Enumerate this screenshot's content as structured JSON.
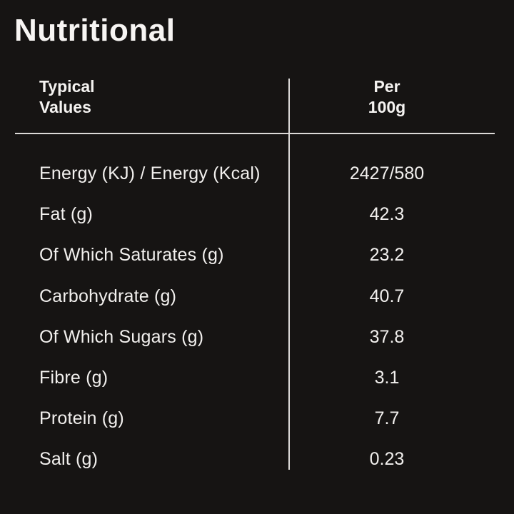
{
  "title": "Nutritional",
  "table": {
    "header": {
      "col1_line1": "Typical",
      "col1_line2": "Values",
      "col2_line1": "Per",
      "col2_line2": "100g"
    },
    "rows": [
      {
        "label": "Energy (KJ) / Energy (Kcal)",
        "value": "2427/580"
      },
      {
        "label": "Fat (g)",
        "value": "42.3"
      },
      {
        "label": "Of Which Saturates (g)",
        "value": "23.2"
      },
      {
        "label": "Carbohydrate (g)",
        "value": "40.7"
      },
      {
        "label": "Of Which Sugars (g)",
        "value": "37.8"
      },
      {
        "label": "Fibre (g)",
        "value": "3.1"
      },
      {
        "label": "Protein (g)",
        "value": "7.7"
      },
      {
        "label": "Salt (g)",
        "value": "0.23"
      }
    ]
  },
  "colors": {
    "background": "#161413",
    "text": "#f2f0ee",
    "rule": "#dcdad8"
  }
}
